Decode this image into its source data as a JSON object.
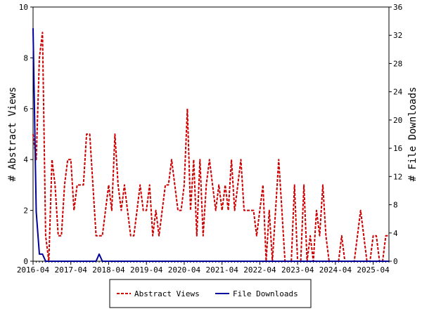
{
  "chart_data": {
    "type": "line",
    "ylabel": "# Abstract Views",
    "y2label": "# File Downloads",
    "ylim": [
      0,
      10
    ],
    "y2lim": [
      0,
      36
    ],
    "yticks": [
      "0",
      "2",
      "4",
      "6",
      "8",
      "10"
    ],
    "y2ticks": [
      "0",
      "4",
      "8",
      "12",
      "16",
      "20",
      "24",
      "28",
      "32",
      "36"
    ],
    "xlim": [
      "2016-04",
      "2025-09"
    ],
    "xticks": [
      "2016-04",
      "2017-04",
      "2018-04",
      "2019-04",
      "2020-04",
      "2021-04",
      "2022-04",
      "2023-04",
      "2024-04",
      "2025-04"
    ],
    "legend_position": "bottom-center",
    "grid": false,
    "series": [
      {
        "name": "Abstract Views",
        "axis": "left",
        "color": "#cc0000",
        "dash": true,
        "x": [
          "2016-04",
          "2016-05",
          "2016-06",
          "2016-07",
          "2016-08",
          "2016-09",
          "2016-10",
          "2016-11",
          "2016-12",
          "2017-01",
          "2017-02",
          "2017-03",
          "2017-04",
          "2017-05",
          "2017-06",
          "2017-07",
          "2017-08",
          "2017-09",
          "2017-10",
          "2017-11",
          "2017-12",
          "2018-01",
          "2018-02",
          "2018-03",
          "2018-04",
          "2018-05",
          "2018-06",
          "2018-07",
          "2018-08",
          "2018-09",
          "2018-10",
          "2018-11",
          "2018-12",
          "2019-01",
          "2019-02",
          "2019-03",
          "2019-04",
          "2019-05",
          "2019-06",
          "2019-07",
          "2019-08",
          "2019-09",
          "2019-10",
          "2019-11",
          "2019-12",
          "2020-01",
          "2020-02",
          "2020-03",
          "2020-04",
          "2020-05",
          "2020-06",
          "2020-07",
          "2020-08",
          "2020-09",
          "2020-10",
          "2020-11",
          "2020-12",
          "2021-01",
          "2021-02",
          "2021-03",
          "2021-04",
          "2021-05",
          "2021-06",
          "2021-07",
          "2021-08",
          "2021-09",
          "2021-10",
          "2021-11",
          "2021-12",
          "2022-01",
          "2022-02",
          "2022-03",
          "2022-04",
          "2022-05",
          "2022-06",
          "2022-07",
          "2022-08",
          "2022-09",
          "2022-10",
          "2022-11",
          "2022-12",
          "2023-01",
          "2023-02",
          "2023-03",
          "2023-04",
          "2023-05",
          "2023-06",
          "2023-07",
          "2023-08",
          "2023-09",
          "2023-10",
          "2023-11",
          "2023-12",
          "2024-01",
          "2024-02",
          "2024-03",
          "2024-04",
          "2024-05",
          "2024-06",
          "2024-07",
          "2024-08",
          "2024-09",
          "2024-10",
          "2024-11",
          "2024-12",
          "2025-01",
          "2025-02",
          "2025-03",
          "2025-04",
          "2025-05",
          "2025-06",
          "2025-07",
          "2025-08",
          "2025-09"
        ],
        "values": [
          5,
          4,
          8,
          9,
          1,
          0,
          4,
          3,
          1,
          1,
          3,
          4,
          4,
          2,
          3,
          3,
          3,
          5,
          5,
          3,
          1,
          1,
          1,
          2,
          3,
          2,
          5,
          3,
          2,
          3,
          2,
          1,
          1,
          2,
          3,
          2,
          2,
          3,
          1,
          2,
          1,
          2,
          3,
          3,
          4,
          3,
          2,
          2,
          3,
          6,
          2,
          4,
          1,
          4,
          1,
          3,
          4,
          3,
          2,
          3,
          2,
          3,
          2,
          4,
          2,
          3,
          4,
          2,
          2,
          2,
          2,
          1,
          2,
          3,
          0,
          2,
          0,
          2,
          4,
          2,
          0,
          0,
          0,
          3,
          0,
          0,
          3,
          0,
          1,
          0,
          2,
          1,
          3,
          1,
          0,
          0,
          0,
          0,
          1,
          0,
          0,
          0,
          0,
          1,
          2,
          1,
          0,
          0,
          1,
          1,
          0,
          0,
          1,
          1
        ],
        "end_value": 1
      },
      {
        "name": "File Downloads",
        "axis": "right",
        "color": "#00009a",
        "dash": false,
        "x": [
          "2016-04",
          "2016-05",
          "2016-06",
          "2016-07",
          "2016-08",
          "2017-12",
          "2018-01",
          "2018-02",
          "2025-09"
        ],
        "values": [
          33,
          7,
          1,
          1,
          0,
          0,
          1,
          0,
          0
        ]
      }
    ]
  }
}
